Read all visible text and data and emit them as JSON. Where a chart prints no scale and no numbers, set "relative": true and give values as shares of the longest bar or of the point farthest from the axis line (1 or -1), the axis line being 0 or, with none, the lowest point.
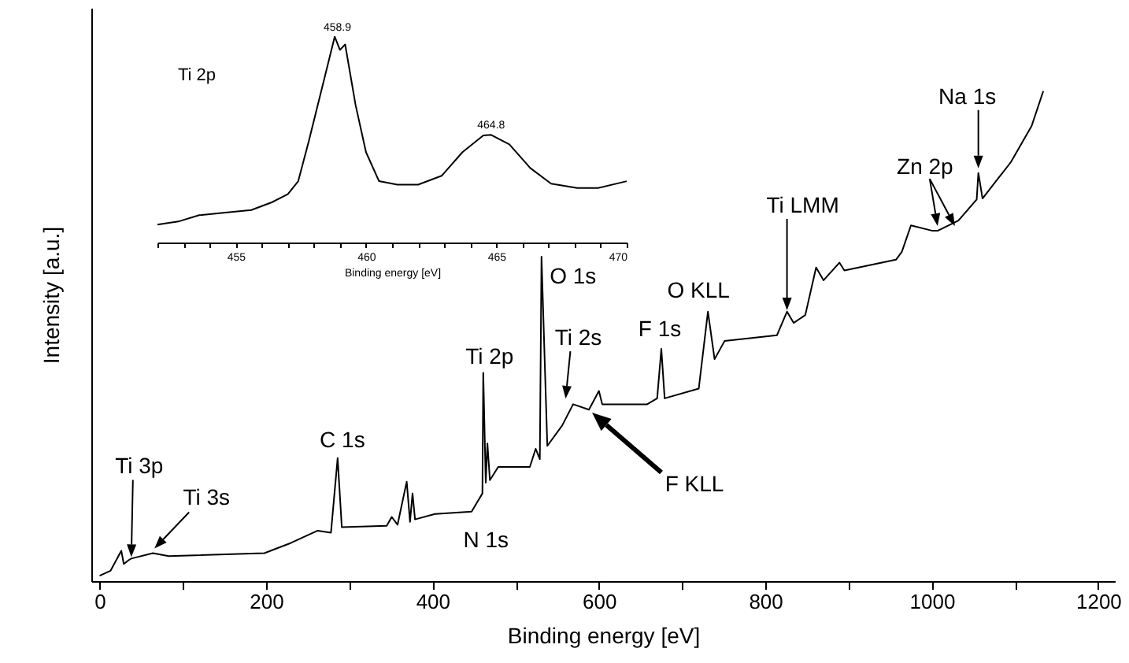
{
  "chart_data": [
    {
      "type": "line",
      "xlabel": "Binding energy [eV]",
      "ylabel": "Intensity [a.u.]",
      "relative": true,
      "xlim": [
        -10,
        1220
      ],
      "xticks": [
        0,
        {
          "value": 100,
          "label": null
        },
        200,
        {
          "value": 300,
          "label": null
        },
        400,
        {
          "value": 500,
          "label": null
        },
        600,
        {
          "value": 700,
          "label": null
        },
        800,
        {
          "value": 900,
          "label": null
        },
        1000,
        {
          "value": 1100,
          "label": null
        },
        1200
      ],
      "x": [
        0,
        13,
        26,
        29,
        35,
        38,
        64,
        83,
        198,
        230,
        262,
        278,
        286,
        291,
        345,
        351,
        358,
        369,
        373,
        376,
        379,
        403,
        447,
        460,
        461,
        464,
        466,
        469,
        479,
        517,
        524,
        529,
        531,
        538,
        556,
        569,
        588,
        600,
        604,
        658,
        670,
        675,
        679,
        720,
        731,
        739,
        751,
        814,
        826,
        834,
        848,
        861,
        870,
        889,
        895,
        957,
        964,
        975,
        1001,
        1007,
        1032,
        1054,
        1056,
        1061,
        1095,
        1120,
        1134
      ],
      "series": [
        {
          "color": "#000000",
          "values": [
            0.011,
            0.021,
            0.062,
            0.035,
            0.043,
            0.046,
            0.057,
            0.051,
            0.057,
            0.078,
            0.103,
            0.099,
            0.251,
            0.11,
            0.113,
            0.131,
            0.115,
            0.203,
            0.121,
            0.179,
            0.126,
            0.137,
            0.142,
            0.179,
            0.425,
            0.201,
            0.281,
            0.206,
            0.233,
            0.233,
            0.27,
            0.249,
            0.662,
            0.276,
            0.318,
            0.361,
            0.35,
            0.388,
            0.361,
            0.361,
            0.373,
            0.474,
            0.373,
            0.393,
            0.55,
            0.453,
            0.49,
            0.502,
            0.55,
            0.527,
            0.543,
            0.64,
            0.614,
            0.65,
            0.634,
            0.656,
            0.672,
            0.726,
            0.715,
            0.715,
            0.736,
            0.779,
            0.833,
            0.781,
            0.855,
            0.929,
            1
          ]
        }
      ],
      "annotations": [
        "Ti 3p",
        {
          "text": "Ti 3s",
          "x": 64,
          "y": 0.057
        },
        {
          "text": "C 1s",
          "x": 286,
          "y": 0.251
        },
        {
          "text": "Ti 2p",
          "x": 461,
          "y": 0.425
        },
        {
          "text": "N 1s",
          "x": 400,
          "y": 0.137
        },
        {
          "text": "O 1s",
          "x": 531,
          "y": 0.662
        },
        {
          "text": "Ti 2s",
          "x": 560,
          "y": 0.363
        },
        "F KLL",
        {
          "text": "F 1s",
          "x": 675,
          "y": 0.474
        },
        {
          "text": "O KLL",
          "x": 731,
          "y": 0.55
        },
        "Ti LMM",
        {
          "text": "Zn 2p",
          "x": 1007,
          "y": 0.715
        },
        {
          "text": "Na 1s",
          "x": 1056,
          "y": 0.833
        }
      ]
    },
    {
      "type": "line",
      "xlabel": "Binding energy [eV]",
      "relative": true,
      "xlim": [
        452,
        470
      ],
      "xticks": [
        {
          "value": 452,
          "label": null
        },
        {
          "value": 453,
          "label": null
        },
        {
          "value": 454,
          "label": null
        },
        455,
        {
          "value": 456,
          "label": null
        },
        {
          "value": 457,
          "label": null
        },
        {
          "value": 458,
          "label": null
        },
        {
          "value": 459,
          "label": null
        },
        460,
        {
          "value": 461,
          "label": null
        },
        {
          "value": 462,
          "label": null
        },
        {
          "value": 463,
          "label": null
        },
        {
          "value": 464,
          "label": null
        },
        465,
        {
          "value": 466,
          "label": null
        },
        {
          "value": 467,
          "label": null
        },
        {
          "value": 468,
          "label": null
        },
        {
          "value": 469,
          "label": null
        },
        470
      ],
      "x": [
        452.0,
        452.8,
        453.6,
        454.6,
        455.6,
        456.4,
        457.0,
        457.4,
        457.8,
        458.4,
        458.8,
        459.0,
        459.2,
        459.6,
        460.0,
        460.5,
        461.2,
        462.0,
        462.9,
        463.7,
        464.5,
        464.8,
        465.5,
        466.3,
        467.1,
        468.1,
        468.9,
        470.0
      ],
      "series": [
        {
          "color": "#000000",
          "values": [
            0.087,
            0.102,
            0.133,
            0.145,
            0.158,
            0.196,
            0.235,
            0.298,
            0.49,
            0.796,
            1,
            0.936,
            0.962,
            0.668,
            0.439,
            0.298,
            0.281,
            0.281,
            0.324,
            0.439,
            0.52,
            0.523,
            0.477,
            0.362,
            0.286,
            0.265,
            0.265,
            0.298
          ]
        }
      ],
      "annotations": [
        "Ti 2p",
        {
          "text": "458.9",
          "x": 458.9,
          "y": 1
        },
        {
          "text": "464.8",
          "x": 464.8,
          "y": 0.523
        }
      ]
    }
  ]
}
